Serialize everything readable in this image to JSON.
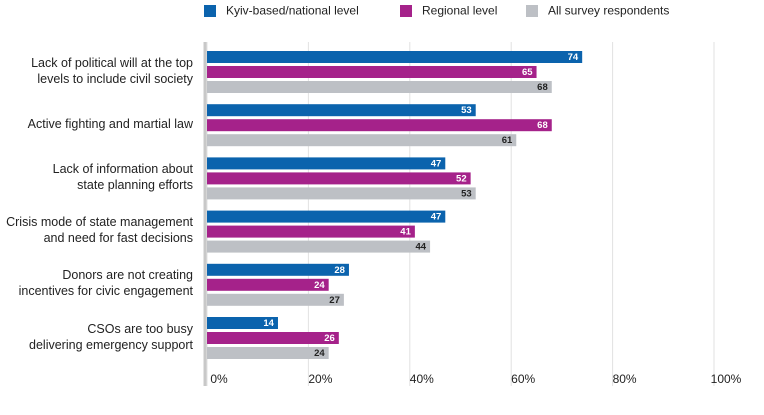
{
  "chart_data": {
    "type": "bar",
    "orientation": "horizontal",
    "categories": [
      "Lack of political will at the top\nlevels to include civil society",
      "Active fighting and martial law",
      "Lack of information about\nstate planning efforts",
      "Crisis mode of state management\nand need for fast decisions",
      "Donors are not creating\nincentives for civic engagement",
      "CSOs are too busy\ndelivering emergency support"
    ],
    "series": [
      {
        "name": "Kyiv-based/national level",
        "color": "#0b63ad",
        "values": [
          74,
          53,
          47,
          47,
          28,
          14
        ]
      },
      {
        "name": "Regional level",
        "color": "#a5228a",
        "values": [
          65,
          68,
          52,
          41,
          24,
          26
        ]
      },
      {
        "name": "All survey respondents",
        "color": "#bdc0c5",
        "values": [
          68,
          61,
          53,
          44,
          27,
          24
        ]
      }
    ],
    "xlim": [
      0,
      100
    ],
    "xticks": [
      {
        "value": 0,
        "label": "0%"
      },
      {
        "value": 20,
        "label": "20%"
      },
      {
        "value": 40,
        "label": "40%"
      },
      {
        "value": 60,
        "label": "60%"
      },
      {
        "value": 80,
        "label": "80%"
      },
      {
        "value": 100,
        "label": "100%"
      }
    ],
    "grid": true,
    "legend": "top"
  }
}
